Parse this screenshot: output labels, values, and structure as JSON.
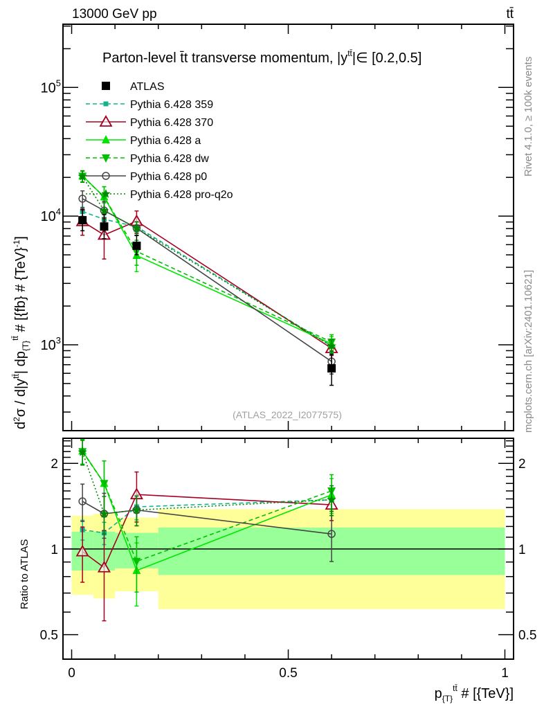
{
  "header": {
    "left": "13000 GeV pp",
    "right": "tt̄"
  },
  "side": {
    "rivet": "Rivet 4.1.0, ≥ 100k events",
    "mcplots": "mcplots.cern.ch [arXiv:2401.10621]"
  },
  "watermark": "(ATLAS_2022_I2077575)",
  "chart_data": {
    "type": "line",
    "title": "Parton-level t̄t transverse momentum, |y^{tt̄}| ∈ [0.2,0.5]",
    "title_parts": [
      "Parton-level t̄t transverse momentum, |y",
      "tt̄",
      "|∈ [0.2,0.5]"
    ],
    "ylabel_parts": [
      "d",
      "2",
      "σ / d|y",
      "tt̄",
      "| dp",
      "{T}",
      "tt̄",
      " # [{fb} # {TeV}",
      "-1",
      "]"
    ],
    "xlabel_parts": [
      "p",
      "{T}",
      "tt̄",
      " # [{TeV}]"
    ],
    "ratio_ylabel": "Ratio to ATLAS",
    "xlim": [
      -0.02,
      1.02
    ],
    "ylim": [
      215,
      310000
    ],
    "yscale": "log",
    "ratio_ylim": [
      0.41,
      2.45
    ],
    "x_ticks": [
      {
        "v": 0,
        "label": "0"
      },
      {
        "v": 0.5,
        "label": "0.5"
      },
      {
        "v": 1,
        "label": "1"
      }
    ],
    "y_ticks": [
      {
        "v": 1000,
        "base": "10",
        "exp": "3"
      },
      {
        "v": 10000,
        "base": "10",
        "exp": "4"
      },
      {
        "v": 100000,
        "base": "10",
        "exp": "5"
      }
    ],
    "ratio_ticks": [
      {
        "v": 0.5,
        "label": "0.5"
      },
      {
        "v": 1,
        "label": "1"
      },
      {
        "v": 2,
        "label": "2"
      }
    ],
    "bin_edges": [
      0,
      0.05,
      0.1,
      0.2,
      1.0
    ],
    "x": [
      0.025,
      0.075,
      0.15,
      0.6
    ],
    "data": {
      "name": "ATLAS",
      "values": [
        9290,
        8300,
        5880,
        656
      ],
      "stat_band": [
        [
          0.84,
          1.15
        ],
        [
          0.84,
          1.15
        ],
        [
          0.855,
          1.14
        ],
        [
          0.81,
          1.19
        ]
      ],
      "total_band": [
        [
          0.69,
          1.31
        ],
        [
          0.67,
          1.33
        ],
        [
          0.71,
          1.29
        ],
        [
          0.615,
          1.38
        ]
      ]
    },
    "series": [
      {
        "name": "Pythia 6.428 359",
        "color": "#14b38c",
        "marker": "small-square",
        "dash": "6,4",
        "values": [
          10850,
          9450,
          8270,
          977
        ],
        "rel_err": [
          0.08,
          0.09,
          0.1,
          0.12
        ]
      },
      {
        "name": "Pythia 6.428 370",
        "color": "#a50021",
        "marker": "open-triangle-up",
        "dash": "",
        "values": [
          9100,
          7140,
          9140,
          938
        ],
        "rel_err": [
          0.22,
          0.35,
          0.2,
          0.12
        ]
      },
      {
        "name": "Pythia 6.428 a",
        "color": "#00e600",
        "marker": "triangle-up",
        "dash": "",
        "values": [
          20530,
          14110,
          4940,
          1017
        ],
        "rel_err": [
          0.1,
          0.2,
          0.25,
          0.14
        ]
      },
      {
        "name": "Pythia 6.428 dw",
        "color": "#00c000",
        "marker": "triangle-down",
        "dash": "6,4",
        "values": [
          20440,
          14110,
          5320,
          1050
        ],
        "rel_err": [
          0.1,
          0.2,
          0.22,
          0.14
        ]
      },
      {
        "name": "Pythia 6.428 p0",
        "color": "#444444",
        "marker": "open-circle",
        "dash": "",
        "values": [
          13660,
          11040,
          8060,
          741
        ],
        "rel_err": [
          0.15,
          0.18,
          0.12,
          0.2
        ]
      },
      {
        "name": "Pythia 6.428 pro-q2o",
        "color": "#008a00",
        "marker": "star",
        "dash": "2,3",
        "values": [
          20350,
          11040,
          8060,
          977
        ],
        "rel_err": [
          0.1,
          0.15,
          0.12,
          0.12
        ]
      }
    ],
    "legend_position": "top-left"
  }
}
